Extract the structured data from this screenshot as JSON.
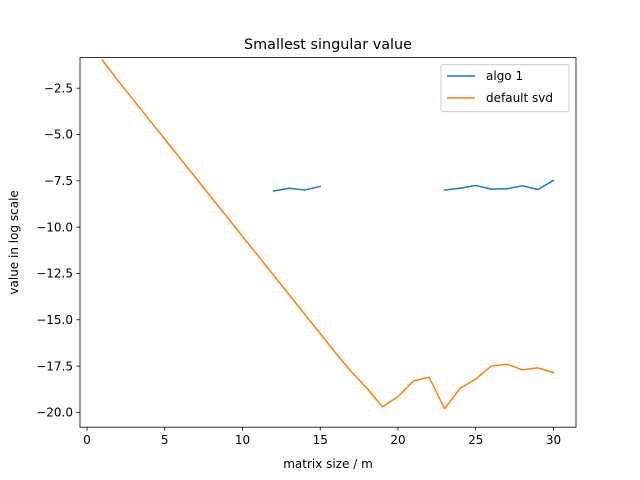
{
  "chart_data": {
    "type": "line",
    "title": "Smallest singular value",
    "xlabel": "matrix size / m",
    "ylabel": "value in log scale",
    "xlim": [
      -0.45,
      31.45
    ],
    "ylim": [
      -20.8,
      -0.85
    ],
    "xticks": [
      0,
      5,
      10,
      15,
      20,
      25,
      30
    ],
    "yticks": [
      -2.5,
      -5.0,
      -7.5,
      -10.0,
      -12.5,
      -15.0,
      -17.5,
      -20.0
    ],
    "ytick_labels": [
      "−2.5",
      "−5.0",
      "−7.5",
      "−10.0",
      "−12.5",
      "−15.0",
      "−17.5",
      "−20.0"
    ],
    "xtick_labels": [
      "0",
      "5",
      "10",
      "15",
      "20",
      "25",
      "30"
    ],
    "legend_position": "top-right",
    "series": [
      {
        "name": "algo 1",
        "color": "#1f77b4",
        "x": [
          12,
          13,
          14,
          15,
          23,
          24,
          25,
          26,
          27,
          28,
          29,
          30
        ],
        "y": [
          -8.05,
          -7.9,
          -8.0,
          -7.8,
          -8.0,
          -7.9,
          -7.75,
          -7.95,
          -7.93,
          -7.77,
          -7.97,
          -7.48
        ],
        "segments": [
          [
            0,
            3
          ],
          [
            4,
            11
          ]
        ]
      },
      {
        "name": "default svd",
        "color": "#ff7f0e",
        "x": [
          1,
          2,
          3,
          4,
          5,
          6,
          7,
          8,
          9,
          10,
          11,
          12,
          13,
          14,
          15,
          16,
          17,
          18,
          19,
          20,
          21,
          22,
          23,
          24,
          25,
          26,
          27,
          28,
          29,
          30
        ],
        "y": [
          -1.0,
          -2.1,
          -3.15,
          -4.2,
          -5.25,
          -6.3,
          -7.35,
          -8.4,
          -9.45,
          -10.5,
          -11.55,
          -12.6,
          -13.65,
          -14.7,
          -15.75,
          -16.8,
          -17.8,
          -18.7,
          -19.7,
          -19.15,
          -18.3,
          -18.1,
          -19.8,
          -18.7,
          -18.2,
          -17.5,
          -17.4,
          -17.7,
          -17.6,
          -17.85
        ],
        "segments": [
          [
            0,
            29
          ]
        ]
      }
    ]
  }
}
